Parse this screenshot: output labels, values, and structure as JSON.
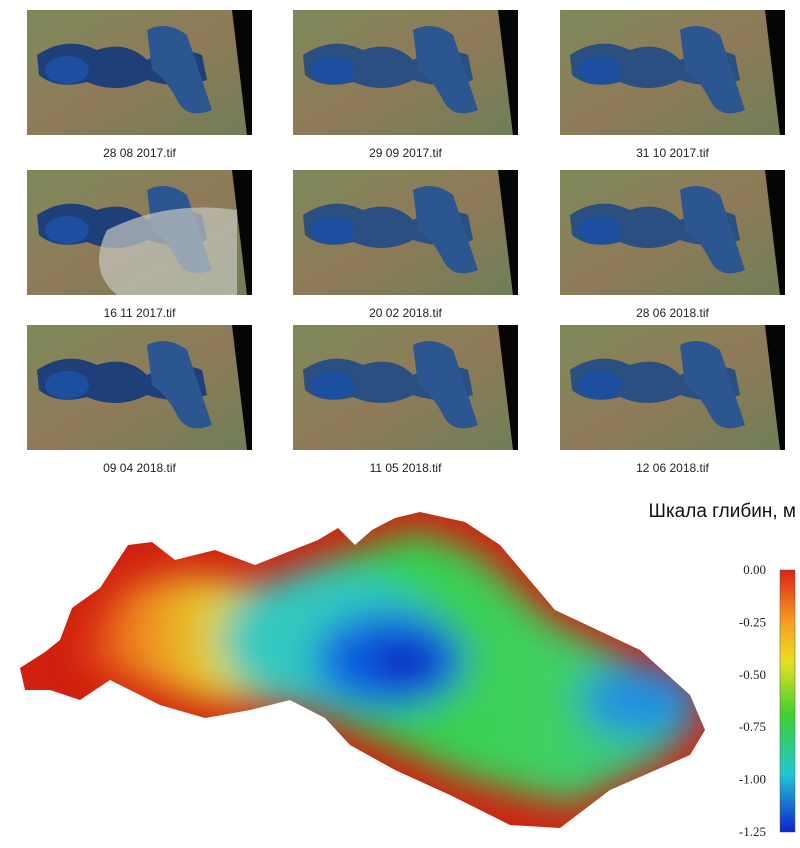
{
  "thumbnails": [
    "28 08 2017.tif",
    "29 09 2017.tif",
    "31 10 2017.tif",
    "16 11 2017.tif",
    "20 02 2018.tif",
    "28 06 2018.tif",
    "09 04 2018.tif",
    "11 05 2018.tif",
    "12 06 2018.tif"
  ],
  "scale": {
    "title": "Шкала глибин, м",
    "ticks": [
      "0.00",
      "-0.25",
      "-0.50",
      "-0.75",
      "-1.00",
      "-1.25"
    ]
  }
}
